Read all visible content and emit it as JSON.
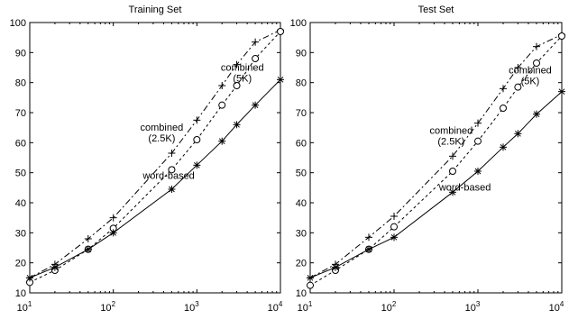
{
  "chart_data": [
    {
      "type": "line",
      "title": "Training Set",
      "xscale": "log",
      "xlim": [
        10,
        10000
      ],
      "ylim": [
        10,
        100
      ],
      "yticks": [
        10,
        20,
        30,
        40,
        50,
        60,
        70,
        80,
        90,
        100
      ],
      "xtick_labels": [
        {
          "base": "10",
          "exp": "1"
        },
        {
          "base": "10",
          "exp": "2"
        },
        {
          "base": "10",
          "exp": "3"
        },
        {
          "base": "10",
          "exp": "4"
        }
      ],
      "grid": false,
      "series": [
        {
          "marker": "+",
          "line": "dashdot",
          "x": [
            10,
            20,
            50,
            100,
            500,
            1000,
            2000,
            3000,
            5000,
            10000
          ],
          "y": [
            15,
            19.5,
            28,
            35,
            56.5,
            67.5,
            79,
            86,
            93.5,
            97.5
          ]
        },
        {
          "marker": "o",
          "line": "dashed",
          "x": [
            10,
            20,
            50,
            100,
            500,
            1000,
            2000,
            3000,
            5000,
            10000
          ],
          "y": [
            13.5,
            17.5,
            24.5,
            31.5,
            51,
            61,
            72.5,
            79,
            88,
            97
          ]
        },
        {
          "marker": "*",
          "line": "solid",
          "x": [
            10,
            20,
            50,
            100,
            500,
            1000,
            2000,
            3000,
            5000,
            10000
          ],
          "y": [
            15,
            18.5,
            24.5,
            30,
            44.5,
            52.5,
            60.5,
            66,
            72.5,
            81
          ]
        }
      ],
      "annotations": [
        {
          "lines": [
            "combined",
            "(5K)"
          ],
          "x": 3500,
          "y": 84
        },
        {
          "lines": [
            "combined",
            "(2.5K)"
          ],
          "x": 380,
          "y": 64
        },
        {
          "lines": [
            "word-based"
          ],
          "x": 460,
          "y": 48
        }
      ]
    },
    {
      "type": "line",
      "title": "Test Set",
      "xscale": "log",
      "xlim": [
        10,
        10000
      ],
      "ylim": [
        10,
        100
      ],
      "yticks": [
        10,
        20,
        30,
        40,
        50,
        60,
        70,
        80,
        90,
        100
      ],
      "xtick_labels": [
        {
          "base": "10",
          "exp": "1"
        },
        {
          "base": "10",
          "exp": "2"
        },
        {
          "base": "10",
          "exp": "3"
        },
        {
          "base": "10",
          "exp": "4"
        }
      ],
      "grid": false,
      "series": [
        {
          "marker": "+",
          "line": "dashdot",
          "x": [
            10,
            20,
            50,
            100,
            500,
            1000,
            2000,
            3000,
            5000,
            10000
          ],
          "y": [
            15,
            19.5,
            28.5,
            35.5,
            55.5,
            66.5,
            78,
            85,
            92,
            96
          ]
        },
        {
          "marker": "o",
          "line": "dashed",
          "x": [
            10,
            20,
            50,
            100,
            500,
            1000,
            2000,
            3000,
            5000,
            10000
          ],
          "y": [
            12.5,
            17.5,
            24.5,
            32,
            50.5,
            60.5,
            71.5,
            78.5,
            86.5,
            95.5
          ]
        },
        {
          "marker": "*",
          "line": "solid",
          "x": [
            10,
            20,
            50,
            100,
            500,
            1000,
            2000,
            3000,
            5000,
            10000
          ],
          "y": [
            15,
            18.5,
            24.5,
            28.5,
            43.5,
            50.5,
            58.5,
            63,
            69.5,
            77
          ]
        }
      ],
      "annotations": [
        {
          "lines": [
            "combined",
            "(5K)"
          ],
          "x": 4200,
          "y": 83
        },
        {
          "lines": [
            "combined",
            "(2.5K)"
          ],
          "x": 480,
          "y": 63
        },
        {
          "lines": [
            "word-based"
          ],
          "x": 700,
          "y": 44
        }
      ]
    }
  ]
}
